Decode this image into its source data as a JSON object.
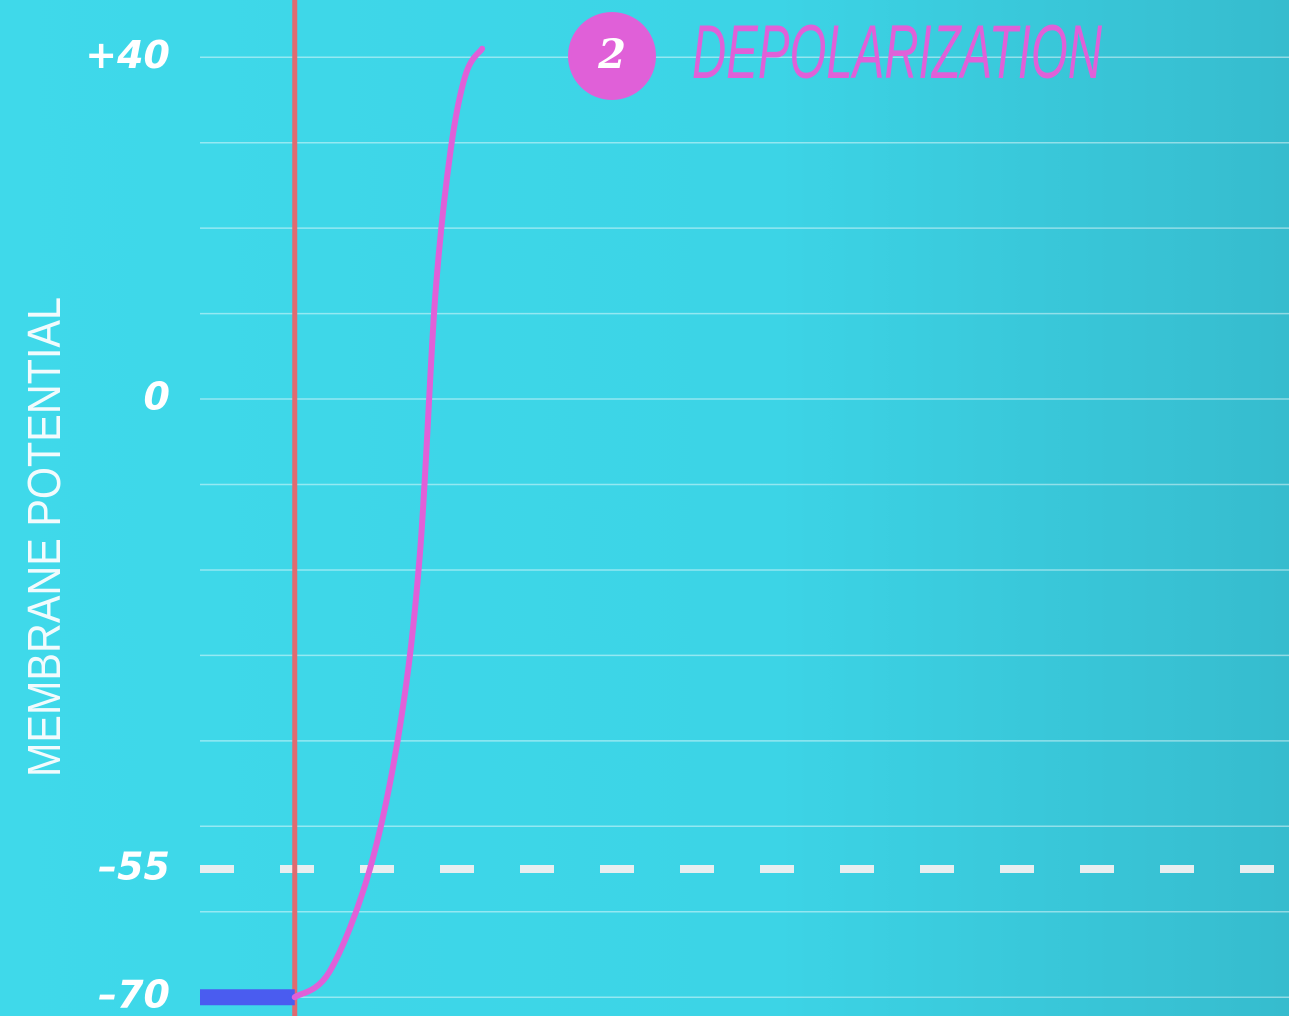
{
  "chart_data": {
    "type": "line",
    "y_label": "MEMBRANE POTENTIAL",
    "annotation": {
      "number": "2",
      "text": "DEPOLARIZATION",
      "color": "#e060d8"
    },
    "xlim": [
      0,
      100
    ],
    "ylim": [
      -72.2,
      46.7
    ],
    "yticks": [
      {
        "value": 40,
        "label": "+40"
      },
      0,
      {
        "value": -55,
        "label": "–55"
      },
      {
        "value": -70,
        "label": "–70"
      }
    ],
    "ygrid": [
      40,
      30,
      20,
      10,
      0,
      -10,
      -20,
      -30,
      -40,
      -50,
      -60,
      -70
    ],
    "threshold": -55,
    "stimulus_x": 8.7,
    "stimulus_color": "#e06a70",
    "series": [
      {
        "color": "#4a5cf0",
        "x": [
          0,
          8.7
        ],
        "values": [
          -70,
          -70
        ]
      },
      {
        "color": "#e060d8",
        "x": [
          8.7,
          11.9,
          15.6,
          18.4,
          20.2,
          21.6,
          23.0,
          24.4,
          25.9
        ],
        "values": [
          -70,
          -67,
          -55,
          -38,
          -18,
          12,
          29,
          38,
          41
        ]
      }
    ]
  }
}
